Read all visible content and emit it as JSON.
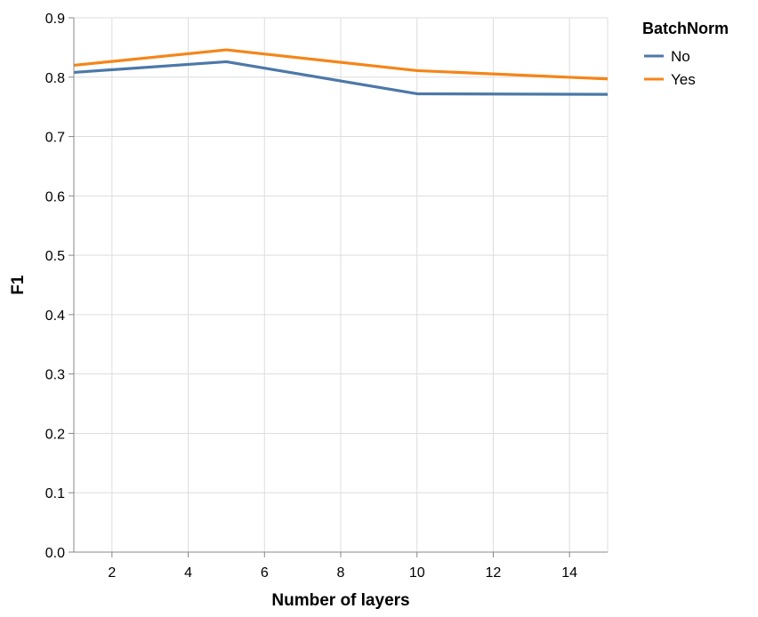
{
  "chart_data": {
    "type": "line",
    "xlabel": "Number of layers",
    "ylabel": "F1",
    "xlim": [
      1,
      15
    ],
    "ylim": [
      0,
      0.9
    ],
    "x_ticks": [
      2,
      4,
      6,
      8,
      10,
      12,
      14
    ],
    "y_ticks": [
      0.0,
      0.1,
      0.2,
      0.3,
      0.4,
      0.5,
      0.6,
      0.7,
      0.8,
      0.9
    ],
    "x_tick_labels": [
      "2",
      "4",
      "6",
      "8",
      "10",
      "12",
      "14"
    ],
    "y_tick_labels": [
      "0.0",
      "0.1",
      "0.2",
      "0.3",
      "0.4",
      "0.5",
      "0.6",
      "0.7",
      "0.8",
      "0.9"
    ],
    "grid": true,
    "legend": {
      "title": "BatchNorm",
      "position": "top-right"
    },
    "series": [
      {
        "name": "No",
        "color": "#4c78a8",
        "x": [
          1,
          5,
          10,
          15
        ],
        "y": [
          0.808,
          0.826,
          0.772,
          0.771
        ]
      },
      {
        "name": "Yes",
        "color": "#f58518",
        "x": [
          1,
          5,
          10,
          15
        ],
        "y": [
          0.82,
          0.846,
          0.811,
          0.797
        ]
      }
    ]
  }
}
